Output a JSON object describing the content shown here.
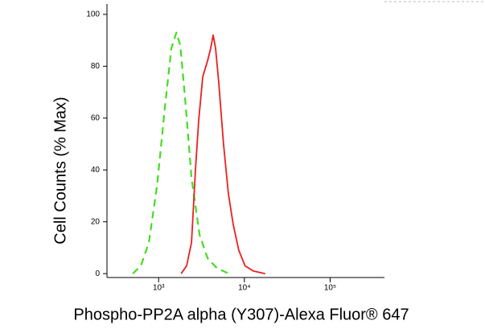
{
  "chart_data": {
    "type": "line",
    "x_label": "Phospho-PP2A alpha (Y307)-Alexa Fluor® 647",
    "y_label": "Cell Counts (% Max)",
    "xscale": "log",
    "xlim": [
      250,
      430000
    ],
    "ylim": [
      -1.5,
      104
    ],
    "xticks": [
      {
        "value": 1000,
        "label": "10³"
      },
      {
        "value": 10000,
        "label": "10⁴"
      },
      {
        "value": 100000,
        "label": "10⁵"
      }
    ],
    "yticks": [
      0,
      20,
      40,
      60,
      80,
      100
    ],
    "series": [
      {
        "color": "#44dd22",
        "dash": true,
        "x": [
          500,
          620,
          770,
          960,
          1190,
          1410,
          1610,
          1790,
          2030,
          2420,
          3000,
          3720,
          4810,
          6640
        ],
        "values": [
          0,
          3,
          12,
          34,
          65,
          87,
          93,
          88,
          68,
          37,
          15,
          6,
          2,
          0
        ]
      },
      {
        "color": "#e8201e",
        "dash": false,
        "x": [
          1830,
          2120,
          2420,
          2690,
          2930,
          3270,
          3720,
          4050,
          4320,
          4610,
          5020,
          5710,
          6500,
          7400,
          8610,
          10200,
          12700,
          17500
        ],
        "values": [
          0,
          3,
          12,
          40,
          59,
          76,
          82,
          87,
          92,
          87,
          74,
          50,
          31,
          19,
          9,
          3,
          1,
          0
        ]
      }
    ]
  }
}
